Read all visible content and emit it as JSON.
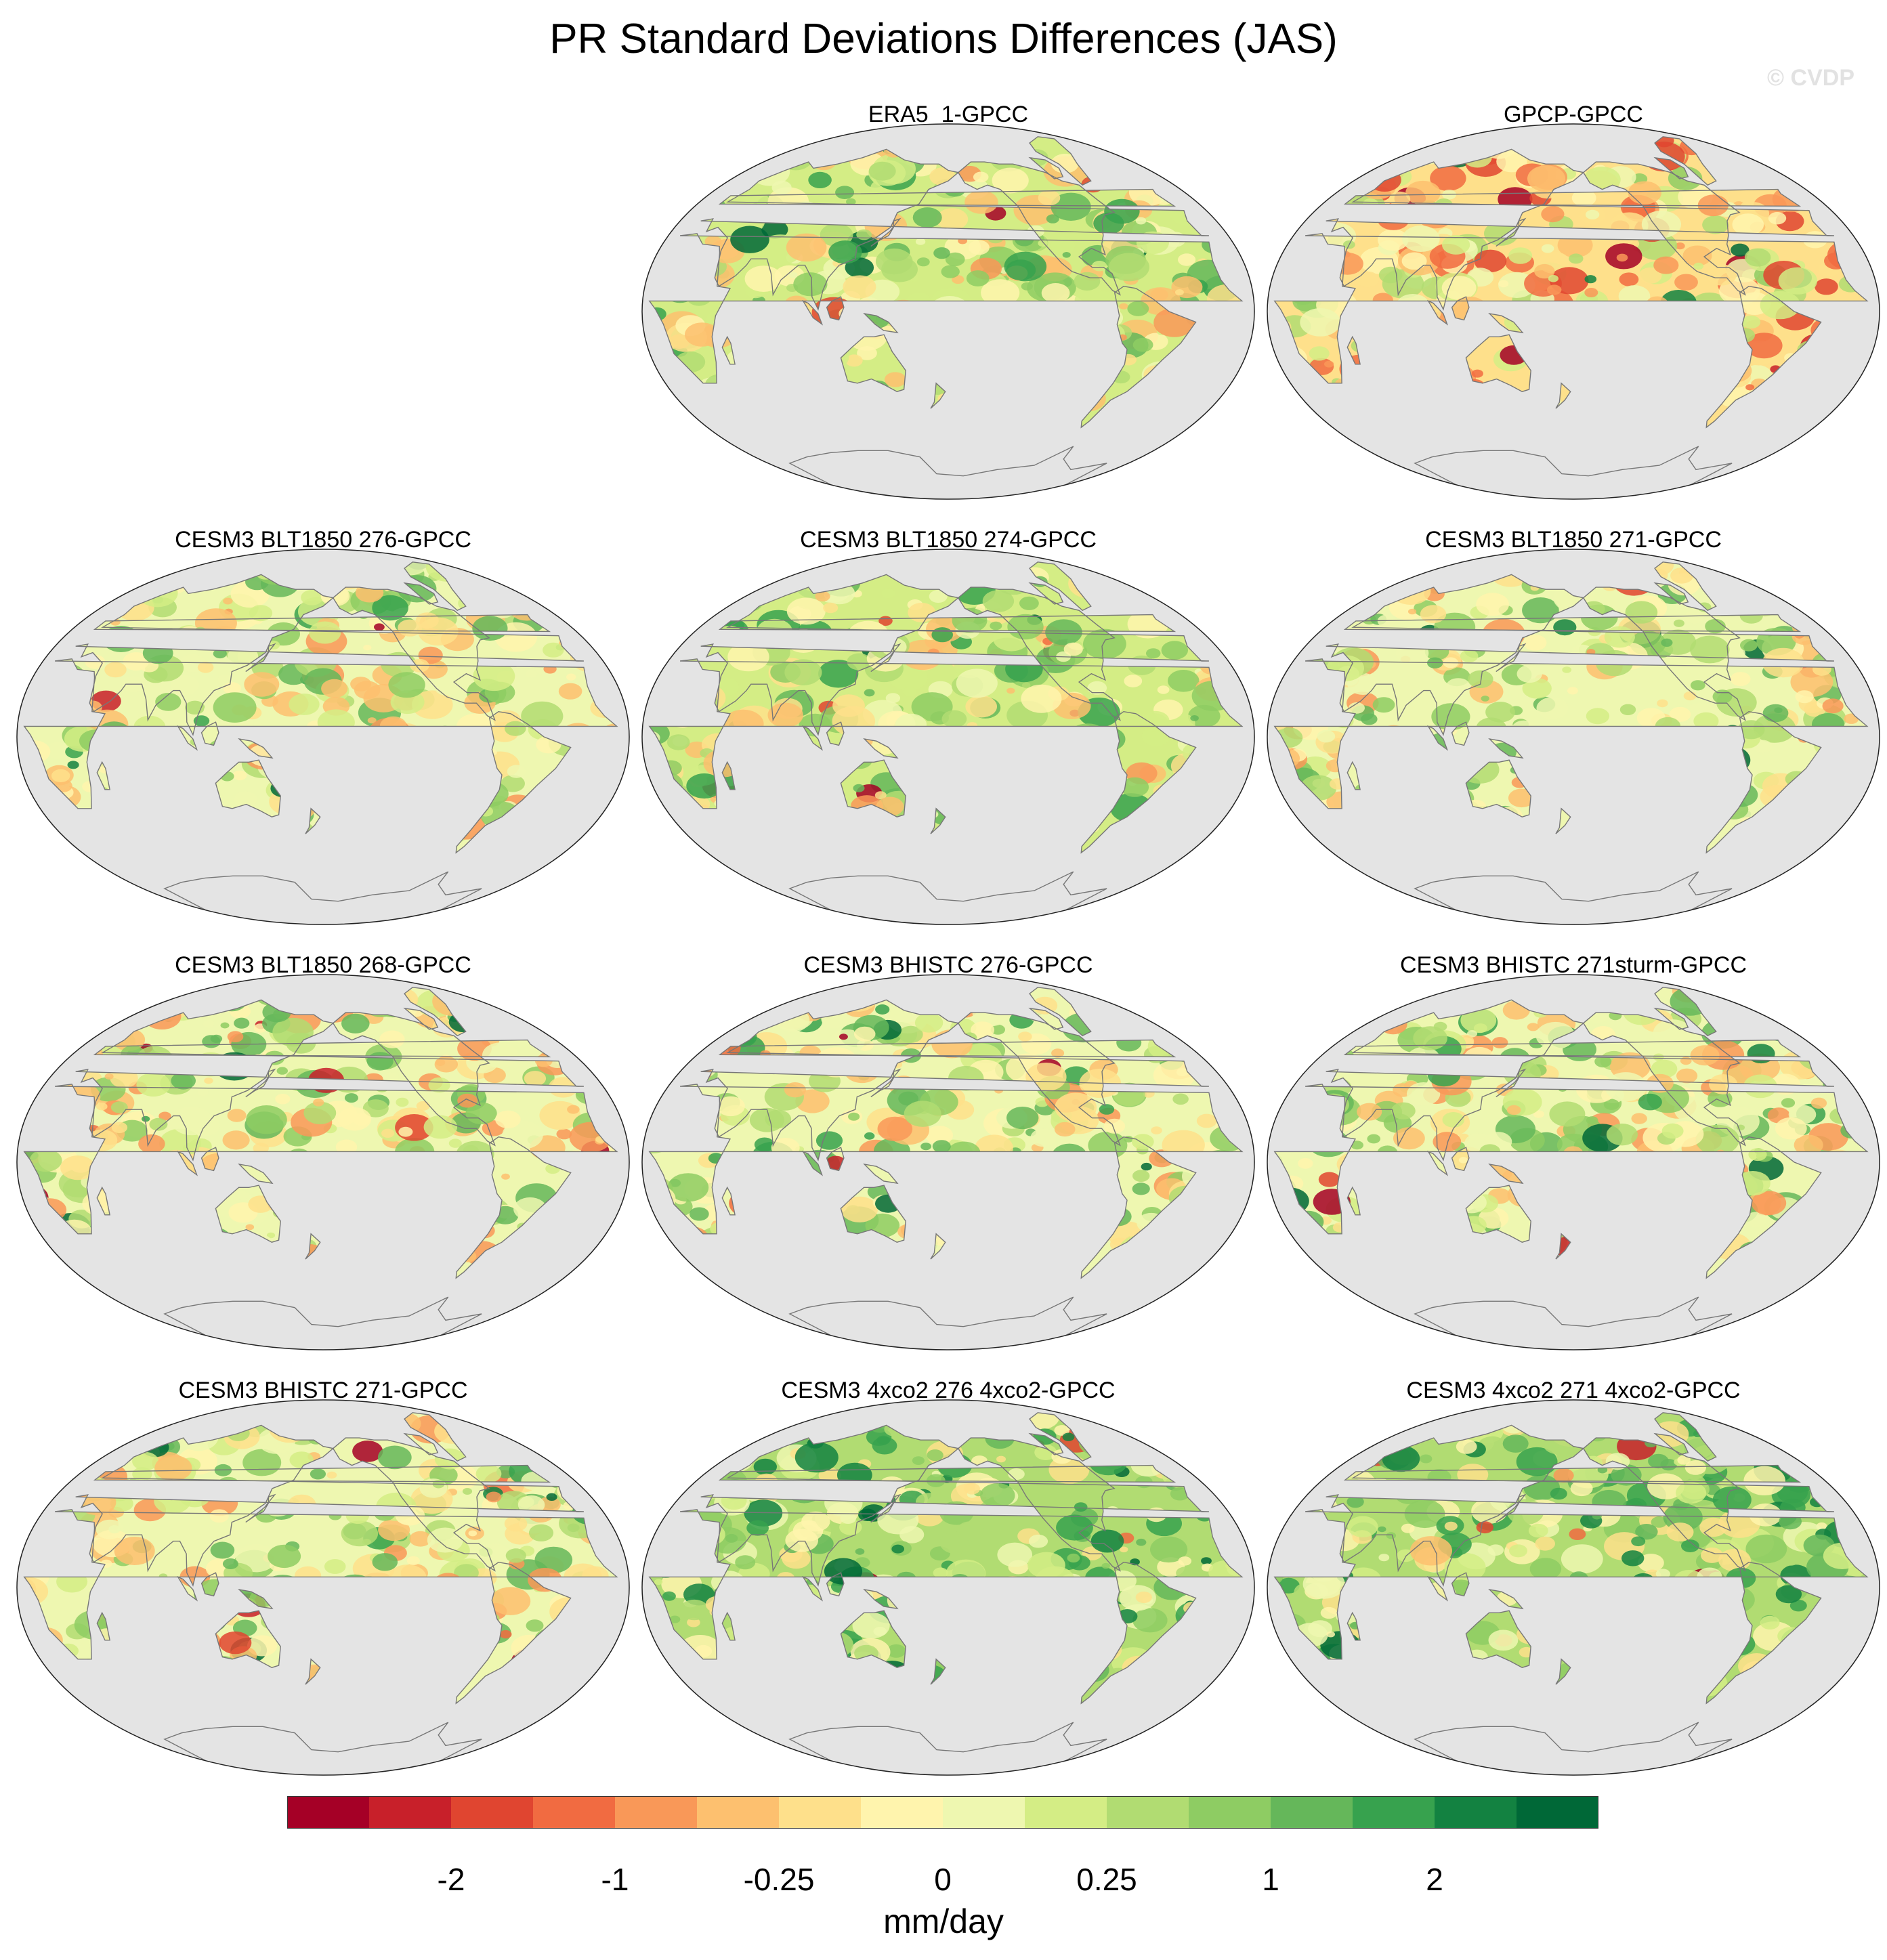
{
  "title": "PR Standard Deviations Differences (JAS)",
  "watermark": "© CVDP",
  "panels": [
    {
      "label": "ERA5_1-GPCC",
      "bias": 0.15,
      "seed": 11
    },
    {
      "label": "GPCP-GPCC",
      "bias": -0.15,
      "seed": 23
    },
    {
      "label": "CESM3 BLT1850 276-GPCC",
      "bias": 0.1,
      "seed": 37
    },
    {
      "label": "CESM3 BLT1850 274-GPCC",
      "bias": 0.15,
      "seed": 41
    },
    {
      "label": "CESM3 BLT1850 271-GPCC",
      "bias": 0.12,
      "seed": 53
    },
    {
      "label": "CESM3 BLT1850 268-GPCC",
      "bias": 0.05,
      "seed": 67
    },
    {
      "label": "CESM3 BHISTC 276-GPCC",
      "bias": 0.12,
      "seed": 71
    },
    {
      "label": "CESM3 BHISTC 271sturm-GPCC",
      "bias": 0.1,
      "seed": 83
    },
    {
      "label": "CESM3 BHISTC 271-GPCC",
      "bias": 0.08,
      "seed": 97
    },
    {
      "label": "CESM3 4xco2 276 4xco2-GPCC",
      "bias": 0.3,
      "seed": 101
    },
    {
      "label": "CESM3 4xco2 271 4xco2-GPCC",
      "bias": 0.28,
      "seed": 113
    }
  ],
  "colorbar": {
    "units": "mm/day",
    "colors": [
      "#a50026",
      "#c8202a",
      "#e04530",
      "#f16b41",
      "#f99858",
      "#fdc06f",
      "#fee08b",
      "#fff4ad",
      "#eef7b0",
      "#d4ed85",
      "#b1dc72",
      "#8ecc63",
      "#65b75a",
      "#37a24e",
      "#138241",
      "#006837"
    ],
    "tick_labels": [
      {
        "text": "-2",
        "boundary": 2
      },
      {
        "text": "-1",
        "boundary": 4
      },
      {
        "text": "-0.25",
        "boundary": 6
      },
      {
        "text": "0",
        "boundary": 8
      },
      {
        "text": "0.25",
        "boundary": 10
      },
      {
        "text": "1",
        "boundary": 12
      },
      {
        "text": "2",
        "boundary": 14
      }
    ]
  }
}
